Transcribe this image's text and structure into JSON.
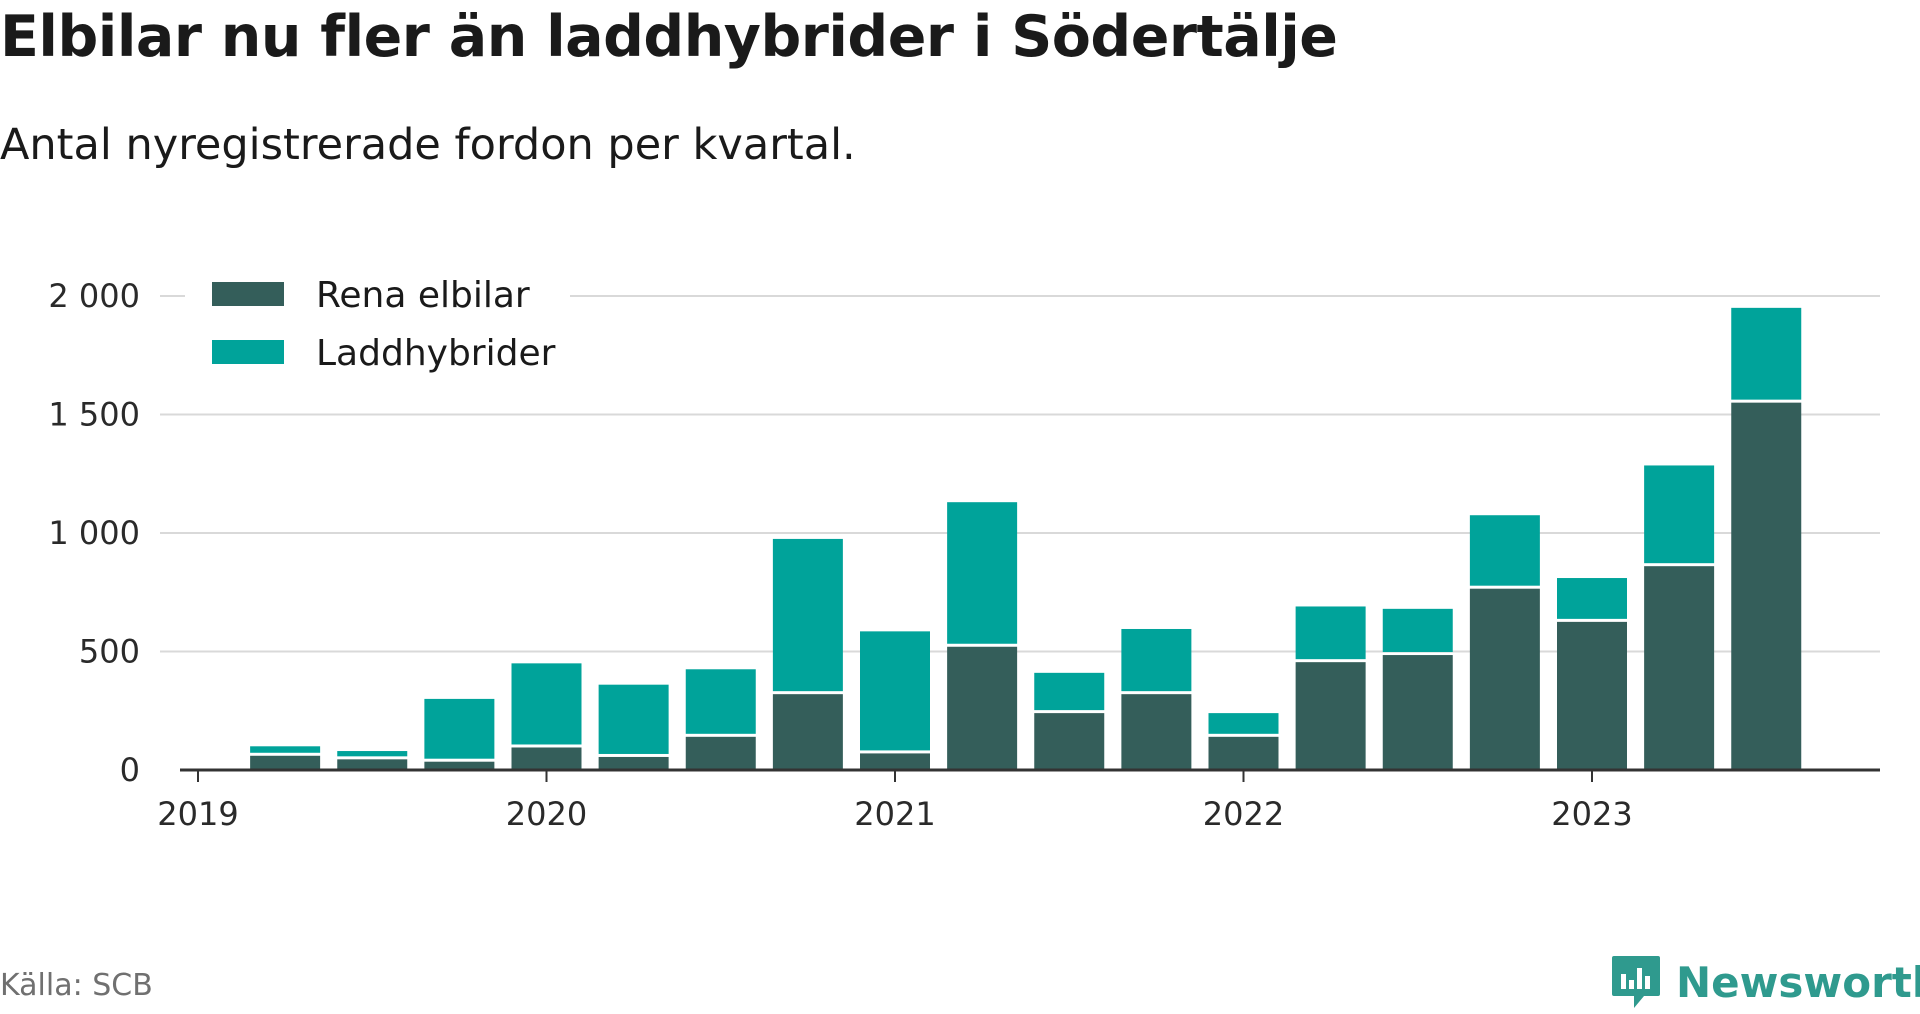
{
  "title": "Elbilar nu fler än laddhybrider i Södertälje",
  "subtitle": "Antal nyregistrerade fordon per kvartal.",
  "source": "Källa: SCB",
  "brand": "Newsworthy",
  "colors": {
    "rena_elbilar": "#345e5a",
    "laddhybrider": "#00a39a",
    "grid": "#d9d9d9",
    "axis": "#333333",
    "brand": "#2f9a8e"
  },
  "chart_data": {
    "type": "bar",
    "stacked": true,
    "title": "Elbilar nu fler än laddhybrider i Södertälje",
    "subtitle": "Antal nyregistrerade fordon per kvartal.",
    "xlabel": "",
    "ylabel": "",
    "ylim": [
      0,
      2000
    ],
    "yticks": [
      0,
      500,
      1000,
      1500,
      2000
    ],
    "ytick_labels": [
      "0",
      "500",
      "1 000",
      "1 500",
      "2 000"
    ],
    "x_year_ticks": [
      2019,
      2020,
      2021,
      2022,
      2023
    ],
    "x_year_tick_labels": [
      "2019",
      "2020",
      "2021",
      "2022",
      "2023"
    ],
    "categories": [
      "2019 Q2",
      "2019 Q3",
      "2019 Q4",
      "2020 Q1",
      "2020 Q2",
      "2020 Q3",
      "2020 Q4",
      "2021 Q1",
      "2021 Q2",
      "2021 Q3",
      "2021 Q4",
      "2022 Q1",
      "2022 Q2",
      "2022 Q3",
      "2022 Q4",
      "2023 Q1",
      "2023 Q2",
      "2023 Q3"
    ],
    "x": [
      2019.25,
      2019.5,
      2019.75,
      2020.0,
      2020.25,
      2020.5,
      2020.75,
      2021.0,
      2021.25,
      2021.5,
      2021.75,
      2022.0,
      2022.25,
      2022.5,
      2022.75,
      2023.0,
      2023.25,
      2023.5
    ],
    "legend_position": "top-left",
    "grid": true,
    "series": [
      {
        "name": "Rena elbilar",
        "color": "#345e5a",
        "values": [
          60,
          45,
          35,
          95,
          55,
          140,
          320,
          70,
          520,
          240,
          320,
          140,
          455,
          485,
          765,
          625,
          860,
          1550
        ]
      },
      {
        "name": "Laddhybrider",
        "color": "#00a39a",
        "values": [
          40,
          35,
          265,
          355,
          305,
          285,
          655,
          515,
          610,
          170,
          275,
          100,
          235,
          195,
          310,
          185,
          425,
          400
        ]
      }
    ]
  }
}
